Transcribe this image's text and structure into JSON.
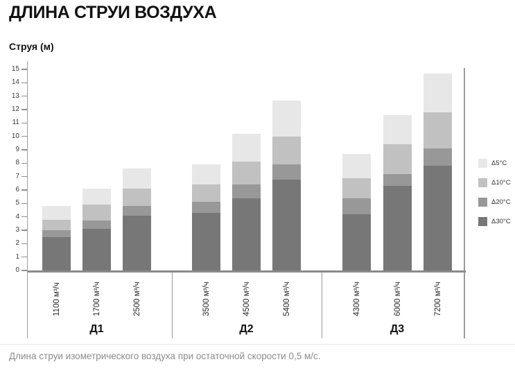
{
  "page": {
    "caption": "Длина струи изометрического воздуха при остаточной скорости 0,5 м/с."
  },
  "chart_data": {
    "type": "bar",
    "stacked": true,
    "title": "ДЛИНА СТРУИ ВОЗДУХА",
    "ylabel": "Струя (м)",
    "xlabel": "",
    "ylim": [
      0,
      15
    ],
    "y_tick_step": 1,
    "grid": false,
    "legend_position": "right",
    "series_bottom_up": [
      {
        "name": "Δ30°C",
        "color": "#777777"
      },
      {
        "name": "Δ20°C",
        "color": "#989898"
      },
      {
        "name": "Δ10°C",
        "color": "#c1c1c1"
      },
      {
        "name": "Δ5°C",
        "color": "#e7e7e7"
      }
    ],
    "legend_top_down": [
      "Δ5°C",
      "Δ10°C",
      "Δ20°C",
      "Δ30°C"
    ],
    "groups": [
      {
        "label": "Д1",
        "bars": [
          {
            "x": "1100 м³/ч",
            "segments": [
              2.5,
              0.5,
              0.8,
              1.0
            ],
            "cumulative": [
              2.5,
              3.0,
              3.8,
              4.8
            ]
          },
          {
            "x": "1700 м³/ч",
            "segments": [
              3.1,
              0.6,
              1.2,
              1.2
            ],
            "cumulative": [
              3.1,
              3.7,
              4.9,
              6.1
            ]
          },
          {
            "x": "2500 м³/ч",
            "segments": [
              4.1,
              0.7,
              1.3,
              1.5
            ],
            "cumulative": [
              4.1,
              4.8,
              6.1,
              7.6
            ]
          }
        ]
      },
      {
        "label": "Д2",
        "bars": [
          {
            "x": "3500 м³/ч",
            "segments": [
              4.3,
              0.8,
              1.3,
              1.5
            ],
            "cumulative": [
              4.3,
              5.1,
              6.4,
              7.9
            ]
          },
          {
            "x": "4500 м³/ч",
            "segments": [
              5.4,
              1.0,
              1.7,
              2.1
            ],
            "cumulative": [
              5.4,
              6.4,
              8.1,
              10.2
            ]
          },
          {
            "x": "5400 м³/ч",
            "segments": [
              6.8,
              1.1,
              2.1,
              2.7
            ],
            "cumulative": [
              6.8,
              7.9,
              10.0,
              12.7
            ]
          }
        ]
      },
      {
        "label": "Д3",
        "bars": [
          {
            "x": "4300 м³/ч",
            "segments": [
              4.2,
              1.2,
              1.5,
              1.8
            ],
            "cumulative": [
              4.2,
              5.4,
              6.9,
              8.7
            ]
          },
          {
            "x": "6000 м³/ч",
            "segments": [
              6.3,
              0.9,
              2.2,
              2.2
            ],
            "cumulative": [
              6.3,
              7.2,
              9.4,
              11.6
            ]
          },
          {
            "x": "7200 м³/ч",
            "segments": [
              7.8,
              1.3,
              2.7,
              2.9
            ],
            "cumulative": [
              7.8,
              9.1,
              11.8,
              14.7
            ]
          }
        ]
      }
    ]
  }
}
